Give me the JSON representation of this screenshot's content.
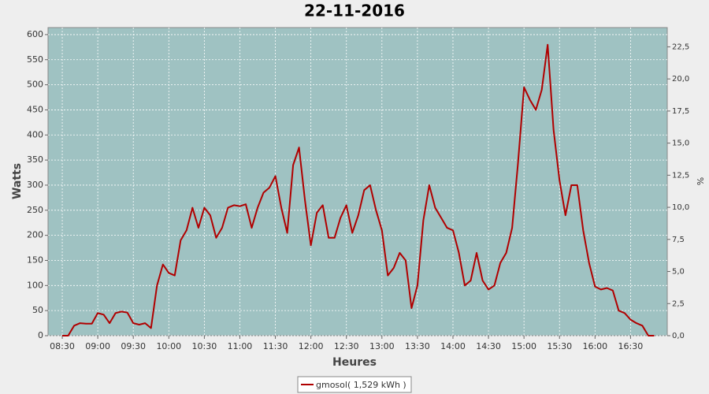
{
  "chart_data": {
    "type": "line",
    "title": "22-11-2016",
    "x_label": "Heures",
    "y_label": "Watts",
    "y2_label": "%",
    "x": [
      510,
      515,
      520,
      525,
      530,
      535,
      540,
      545,
      550,
      555,
      560,
      565,
      570,
      575,
      580,
      585,
      590,
      595,
      600,
      605,
      610,
      615,
      620,
      625,
      630,
      635,
      640,
      645,
      650,
      655,
      660,
      665,
      670,
      675,
      680,
      685,
      690,
      695,
      700,
      705,
      710,
      715,
      720,
      725,
      730,
      735,
      740,
      745,
      750,
      755,
      760,
      765,
      770,
      775,
      780,
      785,
      790,
      795,
      800,
      805,
      810,
      815,
      820,
      825,
      830,
      835,
      840,
      845,
      850,
      855,
      860,
      865,
      870,
      875,
      880,
      885,
      890,
      895,
      900,
      905,
      910,
      915,
      920,
      925,
      930,
      935,
      940,
      945,
      950,
      955,
      960,
      965,
      970,
      975,
      980,
      985,
      990,
      995,
      1000,
      1005,
      1010
    ],
    "series": [
      {
        "name": "gmosol( 1,529 kWh )",
        "color": "#b00000",
        "values": [
          0,
          0,
          20,
          25,
          24,
          24,
          45,
          42,
          25,
          45,
          48,
          46,
          25,
          22,
          25,
          15,
          100,
          142,
          125,
          120,
          190,
          210,
          255,
          215,
          255,
          240,
          195,
          215,
          255,
          260,
          258,
          262,
          215,
          255,
          285,
          295,
          318,
          255,
          205,
          340,
          375,
          270,
          180,
          245,
          260,
          195,
          195,
          235,
          260,
          205,
          240,
          290,
          300,
          250,
          210,
          120,
          135,
          165,
          150,
          55,
          100,
          230,
          300,
          255,
          235,
          215,
          210,
          165,
          100,
          110,
          165,
          110,
          92,
          100,
          145,
          165,
          215,
          345,
          495,
          470,
          450,
          490,
          580,
          410,
          310,
          240,
          300,
          300,
          210,
          145,
          98,
          92,
          95,
          90,
          50,
          45,
          32,
          25,
          20,
          0,
          0
        ]
      }
    ],
    "xlim": [
      498,
      1021
    ],
    "xticks": [
      {
        "value": 510,
        "label": "08:30"
      },
      {
        "value": 540,
        "label": "09:00"
      },
      {
        "value": 570,
        "label": "09:30"
      },
      {
        "value": 600,
        "label": "10:00"
      },
      {
        "value": 630,
        "label": "10:30"
      },
      {
        "value": 660,
        "label": "11:00"
      },
      {
        "value": 690,
        "label": "11:30"
      },
      {
        "value": 720,
        "label": "12:00"
      },
      {
        "value": 750,
        "label": "12:30"
      },
      {
        "value": 780,
        "label": "13:00"
      },
      {
        "value": 810,
        "label": "13:30"
      },
      {
        "value": 840,
        "label": "14:00"
      },
      {
        "value": 870,
        "label": "14:30"
      },
      {
        "value": 900,
        "label": "15:00"
      },
      {
        "value": 930,
        "label": "15:30"
      },
      {
        "value": 960,
        "label": "16:00"
      },
      {
        "value": 990,
        "label": "16:30"
      }
    ],
    "ylim": [
      0,
      614
    ],
    "yticks": [
      0,
      50,
      100,
      150,
      200,
      250,
      300,
      350,
      400,
      450,
      500,
      550,
      600
    ],
    "y2lim": [
      0,
      24
    ],
    "y2ticks": [
      {
        "value": 0,
        "label": "0,0"
      },
      {
        "value": 2.5,
        "label": "2,5"
      },
      {
        "value": 5,
        "label": "5,0"
      },
      {
        "value": 7.5,
        "label": "7,5"
      },
      {
        "value": 10,
        "label": "10,0"
      },
      {
        "value": 12.5,
        "label": "12,5"
      },
      {
        "value": 15,
        "label": "15,0"
      },
      {
        "value": 17.5,
        "label": "17,5"
      },
      {
        "value": 20,
        "label": "20,0"
      },
      {
        "value": 22.5,
        "label": "22,5"
      }
    ],
    "grid": true,
    "plot_background": "#9fc2c2",
    "legend": "bottom"
  }
}
